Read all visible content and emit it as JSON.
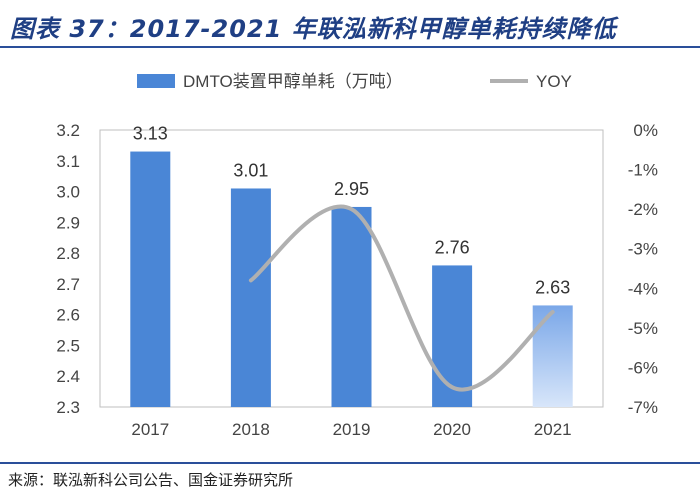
{
  "header": {
    "title": "图表 37：2017-2021 年联泓新科甲醇单耗持续降低"
  },
  "source": {
    "text": "来源：联泓新科公司公告、国金证券研究所"
  },
  "chart_data": {
    "type": "bar",
    "categories": [
      "2017",
      "2018",
      "2019",
      "2020",
      "2021"
    ],
    "series": [
      {
        "name": "DMTO装置甲醇单耗（万吨）",
        "kind": "bar",
        "axis": "left",
        "values": [
          3.13,
          3.01,
          2.95,
          2.76,
          2.63
        ],
        "labels": [
          "3.13",
          "3.01",
          "2.95",
          "2.76",
          "2.63"
        ]
      },
      {
        "name": "YOY",
        "kind": "line",
        "axis": "right",
        "smooth": true,
        "values": [
          null,
          -3.8,
          -2.0,
          -6.5,
          -4.6
        ]
      }
    ],
    "left_axis": {
      "min": 2.3,
      "max": 3.2,
      "ticks": [
        "3.2",
        "3.1",
        "3.0",
        "2.9",
        "2.8",
        "2.7",
        "2.6",
        "2.5",
        "2.4",
        "2.3"
      ]
    },
    "right_axis": {
      "min": -7,
      "max": 0,
      "ticks": [
        "0%",
        "-1%",
        "-2%",
        "-3%",
        "-4%",
        "-5%",
        "-6%",
        "-7%"
      ]
    },
    "legend_position": "top-center",
    "colors": {
      "bar": "#4a86d6",
      "bar_last_top": "#7aa7e8",
      "bar_last_bottom": "#d8e6fa",
      "line": "#b0b0b0",
      "plot_border": "#bfbfbf",
      "text": "#444444"
    }
  }
}
